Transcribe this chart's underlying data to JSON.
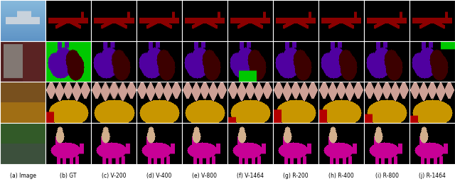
{
  "figure_width": 6.4,
  "figure_height": 2.59,
  "dpi": 100,
  "n_rows": 4,
  "n_cols": 10,
  "col_labels": [
    "(a) Image",
    "(b) GT",
    "(c) V-200",
    "(d) V-400",
    "(e) V-800",
    "(f) V-1464",
    "(g) R-200",
    "(h) R-400",
    "(i) R-800",
    "(j) R-1464"
  ],
  "label_fontsize": 5.5,
  "colors": {
    "dark_red": [
      139,
      0,
      0
    ],
    "black": [
      0,
      0,
      0
    ],
    "green": [
      0,
      200,
      0
    ],
    "purple": [
      80,
      0,
      160
    ],
    "dark_maroon": [
      60,
      0,
      0
    ],
    "pink": [
      205,
      160,
      150
    ],
    "goldenrod": [
      200,
      150,
      0
    ],
    "red": [
      180,
      0,
      0
    ],
    "magenta": [
      200,
      0,
      150
    ],
    "beige": [
      210,
      175,
      140
    ],
    "sky_blue": [
      135,
      185,
      220
    ],
    "grey_white": [
      200,
      210,
      220
    ],
    "cat_bg_dark": [
      80,
      20,
      20
    ],
    "cat_grey": [
      140,
      130,
      130
    ],
    "dinner_warm": [
      120,
      80,
      30
    ],
    "dinner_gold": [
      160,
      110,
      20
    ],
    "horse_green": [
      50,
      90,
      40
    ],
    "white": [
      255,
      255,
      255
    ]
  }
}
